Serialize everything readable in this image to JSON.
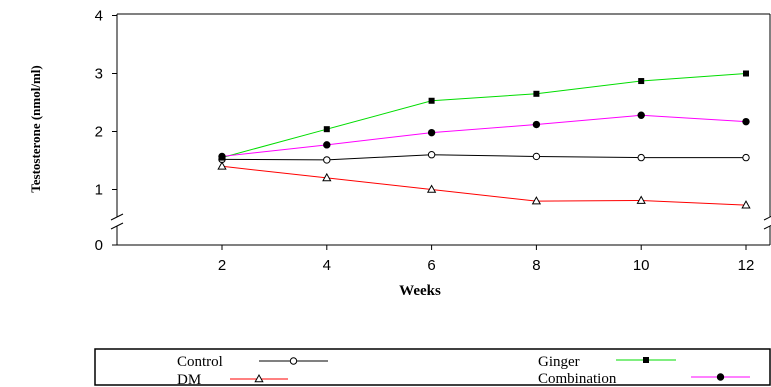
{
  "chart_data": {
    "type": "line",
    "xlabel": "Weeks",
    "ylabel": "Testosterone (nmol/ml)",
    "x": [
      2,
      4,
      6,
      8,
      10,
      12
    ],
    "xlim": [
      0,
      12.5
    ],
    "ylim": [
      0,
      4
    ],
    "xticks": [
      "2",
      "4",
      "6",
      "8",
      "10",
      "12"
    ],
    "yticks": [
      "0",
      "1",
      "2",
      "3",
      "4"
    ],
    "axis_break": "y",
    "grid": false,
    "legend_position": "bottom",
    "series": [
      {
        "name": "Control",
        "values": [
          1.52,
          1.51,
          1.6,
          1.57,
          1.55,
          1.55
        ],
        "color": "#000000",
        "marker": "open-circle"
      },
      {
        "name": "DM",
        "values": [
          1.4,
          1.2,
          1.0,
          0.8,
          0.81,
          0.73
        ],
        "color": "#ff0000",
        "marker": "open-triangle"
      },
      {
        "name": "Ginger",
        "values": [
          1.55,
          2.04,
          2.53,
          2.65,
          2.87,
          3.0
        ],
        "color": "#00dd00",
        "marker": "filled-square"
      },
      {
        "name": "Combination",
        "values": [
          1.57,
          1.77,
          1.98,
          2.12,
          2.28,
          2.17
        ],
        "color": "#ff00ff",
        "marker": "filled-circle"
      }
    ]
  }
}
